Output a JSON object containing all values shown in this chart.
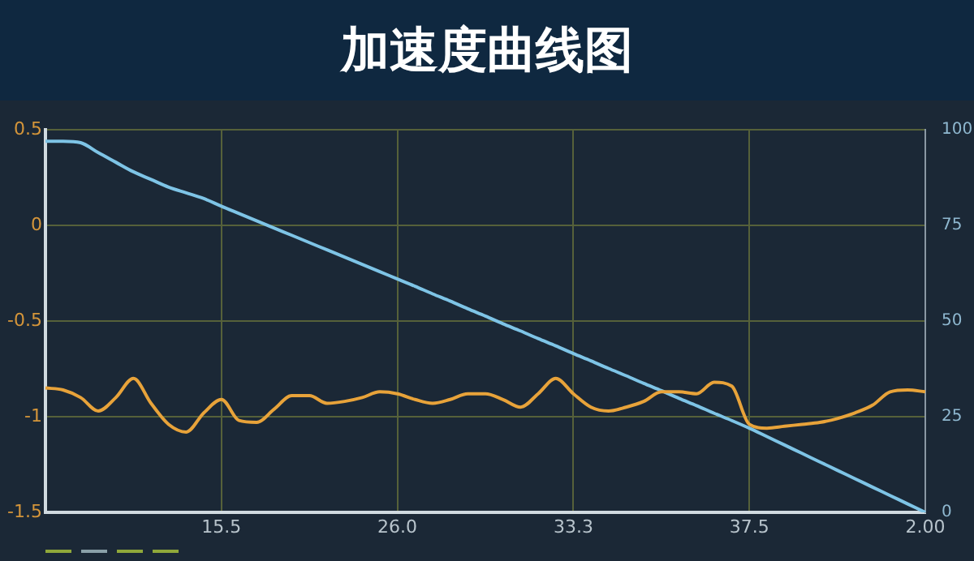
{
  "chart_data": {
    "type": "line",
    "title": "加速度曲线图",
    "categories": [
      null,
      null,
      null,
      null,
      null,
      null,
      null,
      null,
      null,
      null,
      "15.5",
      null,
      null,
      null,
      null,
      null,
      null,
      null,
      null,
      null,
      "26.0",
      null,
      null,
      null,
      null,
      null,
      null,
      null,
      null,
      null,
      "33.3",
      null,
      null,
      null,
      null,
      null,
      null,
      null,
      null,
      null,
      "37.5",
      null,
      null,
      null,
      null,
      null,
      null,
      null,
      null,
      null,
      "2.00"
    ],
    "ylim": [
      -1.5,
      0.5
    ],
    "yticks": [
      -1.5,
      -1,
      -0.5,
      0,
      0.5
    ],
    "y2lim": [
      0,
      100
    ],
    "y2ticks": [
      0,
      25,
      50,
      75,
      100
    ],
    "grid": true,
    "legend": false,
    "marker": "none",
    "line_style": "solid",
    "series": [
      {
        "color": "#e8a33a",
        "values": [
          -0.85,
          -0.86,
          -0.9,
          -0.97,
          -0.9,
          -0.8,
          -0.93,
          -1.04,
          -1.08,
          -0.98,
          -0.91,
          -1.02,
          -1.03,
          -0.96,
          -0.89,
          -0.89,
          -0.93,
          -0.92,
          -0.9,
          -0.87,
          -0.88,
          -0.91,
          -0.93,
          -0.91,
          -0.88,
          -0.88,
          -0.91,
          -0.95,
          -0.88,
          -0.8,
          -0.88,
          -0.95,
          -0.97,
          -0.95,
          -0.92,
          -0.87,
          -0.87,
          -0.88,
          -0.82,
          -0.84,
          -1.04,
          -1.06,
          -1.05,
          -1.04,
          -1.03,
          -1.01,
          -0.98,
          -0.94,
          -0.87,
          -0.86,
          -0.87
        ]
      },
      {
        "color": "#7ec4e6",
        "axis": "y2",
        "values": [
          97,
          97,
          96.6,
          94,
          91.5,
          89,
          87,
          85,
          83.5,
          82,
          80,
          78.1,
          76.2,
          74.3,
          72.4,
          70.5,
          68.6,
          66.7,
          64.8,
          62.9,
          61,
          59.1,
          57.1,
          55.2,
          53.2,
          51.3,
          49.3,
          47.4,
          45.4,
          43.5,
          41.5,
          39.6,
          37.6,
          35.7,
          33.7,
          31.8,
          29.8,
          27.9,
          25.9,
          24,
          22,
          19.8,
          17.6,
          15.4,
          13.2,
          11,
          8.8,
          6.6,
          4.4,
          2.2,
          0
        ]
      }
    ]
  }
}
